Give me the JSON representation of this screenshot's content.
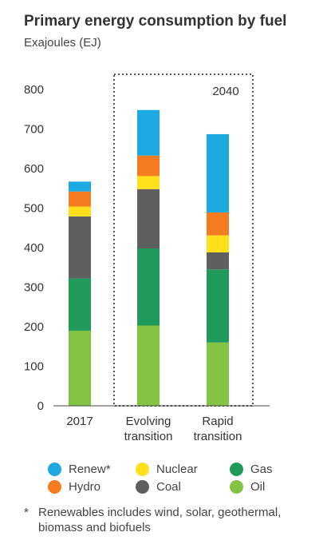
{
  "title": "Primary energy consumption by fuel",
  "subtitle": "Exajoules (EJ)",
  "footnote": {
    "marker": "*",
    "text": "Renewables includes wind, solar, geothermal, biomass and biofuels"
  },
  "colors": {
    "renew": "#1ca9e2",
    "hydro": "#f47b20",
    "nuclear": "#ffe01b",
    "coal": "#5f5f60",
    "gas": "#1f9a5a",
    "oil": "#84c443",
    "axis": "#444444",
    "text": "#333333"
  },
  "legend": [
    {
      "key": "renew",
      "label": "Renew*"
    },
    {
      "key": "nuclear",
      "label": "Nuclear"
    },
    {
      "key": "gas",
      "label": "Gas"
    },
    {
      "key": "hydro",
      "label": "Hydro"
    },
    {
      "key": "coal",
      "label": "Coal"
    },
    {
      "key": "oil",
      "label": "Oil"
    }
  ],
  "chart_data": {
    "type": "bar",
    "stacked": true,
    "title": "Primary energy consumption by fuel",
    "ylabel": "Exajoules (EJ)",
    "ylim": [
      0,
      800
    ],
    "yticks": [
      0,
      100,
      200,
      300,
      400,
      500,
      600,
      700,
      800
    ],
    "grid": false,
    "legend_position": "bottom",
    "categories": [
      {
        "lines": [
          "2017"
        ]
      },
      {
        "lines": [
          "Evolving",
          "transition"
        ]
      },
      {
        "lines": [
          "Rapid",
          "transition"
        ]
      }
    ],
    "annotation": {
      "label": "2040",
      "spans": [
        "Evolving transition",
        "Rapid transition"
      ]
    },
    "series": [
      {
        "name": "Oil",
        "key": "oil",
        "values": [
          190,
          203,
          160
        ]
      },
      {
        "name": "Gas",
        "key": "gas",
        "values": [
          132,
          195,
          185
        ]
      },
      {
        "name": "Coal",
        "key": "coal",
        "values": [
          157,
          150,
          43
        ]
      },
      {
        "name": "Nuclear",
        "key": "nuclear",
        "values": [
          25,
          33,
          43
        ]
      },
      {
        "name": "Hydro",
        "key": "hydro",
        "values": [
          38,
          52,
          58
        ]
      },
      {
        "name": "Renew*",
        "key": "renew",
        "values": [
          25,
          115,
          198
        ]
      }
    ]
  }
}
